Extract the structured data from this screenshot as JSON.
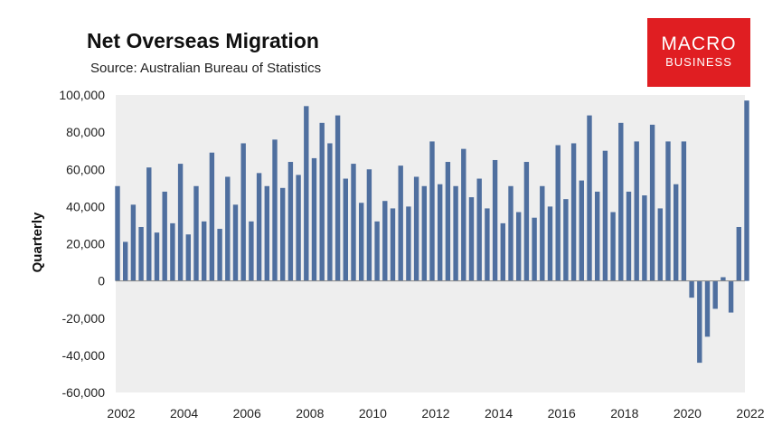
{
  "header": {
    "title": "Net Overseas Migration",
    "subtitle": "Source: Australian Bureau of Statistics"
  },
  "logo": {
    "line1": "MACRO",
    "line2": "BUSINESS",
    "color": "#e01e22"
  },
  "colors": {
    "bar": "#4f6f9f",
    "plot_bg": "#eeeeee"
  },
  "chart_data": {
    "type": "bar",
    "title": "Net Overseas Migration",
    "subtitle": "Source: Australian Bureau of Statistics",
    "xlabel": "",
    "ylabel": "Quarterly",
    "ylim": [
      -60000,
      100000
    ],
    "yticks": [
      100000,
      80000,
      60000,
      40000,
      20000,
      0,
      -20000,
      -40000,
      -60000
    ],
    "ytick_labels": [
      "100,000",
      "80,000",
      "60,000",
      "40,000",
      "20,000",
      "0",
      "-20,000",
      "-40,000",
      "-60,000"
    ],
    "xticks": [
      "2002",
      "2004",
      "2006",
      "2008",
      "2010",
      "2012",
      "2014",
      "2016",
      "2018",
      "2020",
      "2022"
    ],
    "x_start": 2002,
    "x_end": 2022,
    "quarters_per_year": 4,
    "grid": false,
    "series": [
      {
        "name": "Net Overseas Migration (quarterly)",
        "values": [
          51000,
          21000,
          41000,
          29000,
          61000,
          26000,
          48000,
          31000,
          63000,
          25000,
          51000,
          32000,
          69000,
          28000,
          56000,
          41000,
          74000,
          32000,
          58000,
          51000,
          76000,
          50000,
          64000,
          57000,
          94000,
          66000,
          85000,
          74000,
          89000,
          55000,
          63000,
          42000,
          60000,
          32000,
          43000,
          39000,
          62000,
          40000,
          56000,
          51000,
          75000,
          52000,
          64000,
          51000,
          71000,
          45000,
          55000,
          39000,
          65000,
          31000,
          51000,
          37000,
          64000,
          34000,
          51000,
          40000,
          73000,
          44000,
          74000,
          54000,
          89000,
          48000,
          70000,
          37000,
          85000,
          48000,
          75000,
          46000,
          84000,
          39000,
          75000,
          52000,
          75000,
          -9000,
          -44000,
          -30000,
          -15000,
          2000,
          -17000,
          29000,
          97000
        ]
      }
    ]
  }
}
